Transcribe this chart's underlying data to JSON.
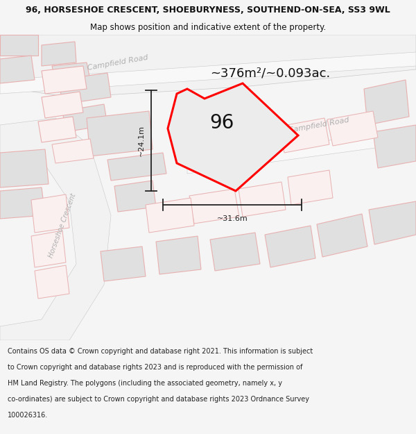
{
  "title_line1": "96, HORSESHOE CRESCENT, SHOEBURYNESS, SOUTHEND-ON-SEA, SS3 9WL",
  "title_line2": "Map shows position and indicative extent of the property.",
  "area_text": "~376m²/~0.093ac.",
  "label_96": "96",
  "dim_height": "~24.1m",
  "dim_width": "~31.6m",
  "footer_lines": [
    "Contains OS data © Crown copyright and database right 2021. This information is subject",
    "to Crown copyright and database rights 2023 and is reproduced with the permission of",
    "HM Land Registry. The polygons (including the associated geometry, namely x, y",
    "co-ordinates) are subject to Crown copyright and database rights 2023 Ordnance Survey",
    "100026316."
  ],
  "bg_color": "#f5f5f5",
  "map_bg": "#ffffff",
  "plot_edge_color": "#ff0000",
  "plot_fill_color": "#ebebeb",
  "building_fill": "#e0e0e0",
  "building_edge": "#e8b0b0",
  "road_fill": "#f0f0f0",
  "road_label_color": "#b0b0b0",
  "dim_color": "#222222",
  "title_color": "#111111",
  "footer_color": "#222222",
  "title_fontsize": 9.0,
  "subtitle_fontsize": 8.5,
  "area_fontsize": 13,
  "label_fontsize": 20,
  "dim_fontsize": 8,
  "road_label_fontsize": 8,
  "footer_fontsize": 7.0
}
